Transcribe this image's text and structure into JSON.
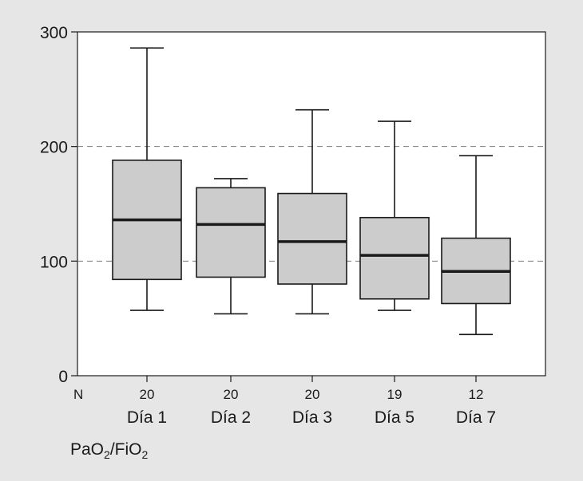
{
  "chart_data": {
    "type": "boxplot",
    "ylim": [
      0,
      300
    ],
    "yticks": [
      0,
      100,
      200,
      300
    ],
    "reference_lines": [
      100,
      200
    ],
    "n_label": "N",
    "ylabel_main": "PaO",
    "ylabel_sub1": "2",
    "ylabel_sep": "/FiO",
    "ylabel_sub2": "2",
    "categories": [
      "Día 1",
      "Día 2",
      "Día 3",
      "Día 5",
      "Día 7"
    ],
    "n": [
      "20",
      "20",
      "20",
      "19",
      "12"
    ],
    "boxes": [
      {
        "whisker_low": 57,
        "q1": 84,
        "median": 136,
        "q3": 188,
        "whisker_high": 286
      },
      {
        "whisker_low": 54,
        "q1": 86,
        "median": 132,
        "q3": 164,
        "whisker_high": 172
      },
      {
        "whisker_low": 54,
        "q1": 80,
        "median": 117,
        "q3": 159,
        "whisker_high": 232
      },
      {
        "whisker_low": 57,
        "q1": 67,
        "median": 105,
        "q3": 138,
        "whisker_high": 222
      },
      {
        "whisker_low": 36,
        "q1": 63,
        "median": 91,
        "q3": 120,
        "whisker_high": 192
      }
    ],
    "colors": {
      "box_fill": "#cccccc",
      "line": "#1a1a1a",
      "background": "#e6e6e6",
      "plot_bg": "#ffffff"
    }
  }
}
